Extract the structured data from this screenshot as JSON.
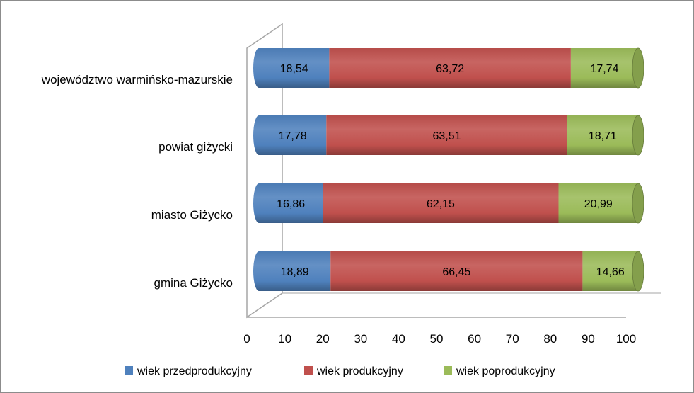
{
  "chart_data": {
    "type": "bar",
    "orientation": "horizontal",
    "stacked": true,
    "style": "3d-cylinder",
    "categories": [
      "województwo warmińsko-mazurskie",
      "powiat giżycki",
      "miasto Giżycko",
      "gmina Giżycko"
    ],
    "series": [
      {
        "name": "wiek przedprodukcyjny",
        "color": "#4f81bd",
        "values": [
          18.54,
          17.78,
          16.86,
          18.89
        ],
        "labels": [
          "18,54",
          "17,78",
          "16,86",
          "18,89"
        ]
      },
      {
        "name": "wiek produkcyjny",
        "color": "#c0504d",
        "values": [
          63.72,
          63.51,
          62.15,
          66.45
        ],
        "labels": [
          "63,72",
          "63,51",
          "62,15",
          "66,45"
        ]
      },
      {
        "name": "wiek poprodukcyjny",
        "color": "#9bbb59",
        "values": [
          17.74,
          18.71,
          20.99,
          14.66
        ],
        "labels": [
          "17,74",
          "18,71",
          "20,99",
          "14,66"
        ]
      }
    ],
    "xlim": [
      0,
      100
    ],
    "xticks": [
      "0",
      "10",
      "20",
      "30",
      "40",
      "50",
      "60",
      "70",
      "80",
      "90",
      "100"
    ],
    "title": "",
    "xlabel": "",
    "ylabel": "",
    "grid": false,
    "legend_position": "bottom"
  }
}
